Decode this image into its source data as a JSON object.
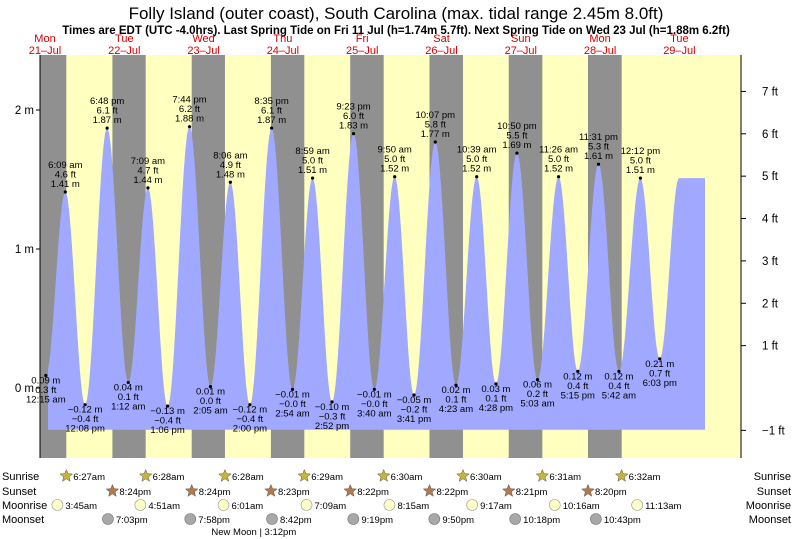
{
  "chart_data": {
    "type": "area",
    "title": "Folly Island (outer coast), South Carolina (max. tidal range 2.45m 8.0ft)",
    "subtitle": "Times are EDT (UTC -4.0hrs). Last Spring Tide on Fri 11 Jul (h=1.74m 5.7ft). Next Spring Tide on Wed 23 Jul (h=1.88m 6.2ft)",
    "days": [
      {
        "dow": "Mon",
        "date": "21–Jul"
      },
      {
        "dow": "Tue",
        "date": "22–Jul"
      },
      {
        "dow": "Wed",
        "date": "23–Jul"
      },
      {
        "dow": "Thu",
        "date": "24–Jul"
      },
      {
        "dow": "Fri",
        "date": "25–Jul"
      },
      {
        "dow": "Sat",
        "date": "26–Jul"
      },
      {
        "dow": "Sun",
        "date": "27–Jul"
      },
      {
        "dow": "Mon",
        "date": "28–Jul"
      },
      {
        "dow": "Tue",
        "date": "29–Jul"
      }
    ],
    "y_left": {
      "unit": "m",
      "ticks": [
        {
          "v": 0,
          "label": "0 m"
        },
        {
          "v": 1,
          "label": "1 m"
        },
        {
          "v": 2,
          "label": "2 m"
        }
      ]
    },
    "y_right": {
      "unit": "ft",
      "ticks": [
        {
          "v": -1,
          "label": "−1 ft"
        },
        {
          "v": 1,
          "label": "1 ft"
        },
        {
          "v": 2,
          "label": "2 ft"
        },
        {
          "v": 3,
          "label": "3 ft"
        },
        {
          "v": 4,
          "label": "4 ft"
        },
        {
          "v": 5,
          "label": "5 ft"
        },
        {
          "v": 6,
          "label": "6 ft"
        },
        {
          "v": 7,
          "label": "7 ft"
        }
      ]
    },
    "ylim_m": [
      -0.5,
      2.4
    ],
    "tides": [
      {
        "day": 0,
        "hour": 0.25,
        "m": 0.09,
        "time": "12:15 am",
        "ft": "0.3 ft",
        "mstr": "0.09 m",
        "type": "low"
      },
      {
        "day": 0,
        "hour": 6.15,
        "m": 1.41,
        "time": "6:09 am",
        "ft": "4.6 ft",
        "mstr": "1.41 m",
        "type": "high"
      },
      {
        "day": 0,
        "hour": 12.13,
        "m": -0.12,
        "time": "12:08 pm",
        "ft": "−0.4 ft",
        "mstr": "−0.12 m",
        "type": "low"
      },
      {
        "day": 0,
        "hour": 18.8,
        "m": 1.87,
        "time": "6:48 pm",
        "ft": "6.1 ft",
        "mstr": "1.87 m",
        "type": "high"
      },
      {
        "day": 1,
        "hour": 1.2,
        "m": 0.04,
        "time": "1:12 am",
        "ft": "0.1 ft",
        "mstr": "0.04 m",
        "type": "low"
      },
      {
        "day": 1,
        "hour": 7.15,
        "m": 1.44,
        "time": "7:09 am",
        "ft": "4.7 ft",
        "mstr": "1.44 m",
        "type": "high"
      },
      {
        "day": 1,
        "hour": 13.1,
        "m": -0.13,
        "time": "1:06 pm",
        "ft": "−0.4 ft",
        "mstr": "−0.13 m",
        "type": "low"
      },
      {
        "day": 1,
        "hour": 19.73,
        "m": 1.88,
        "time": "7:44 pm",
        "ft": "6.2 ft",
        "mstr": "1.88 m",
        "type": "high"
      },
      {
        "day": 2,
        "hour": 2.08,
        "m": 0.01,
        "time": "2:05 am",
        "ft": "0.0 ft",
        "mstr": "0.01 m",
        "type": "low"
      },
      {
        "day": 2,
        "hour": 8.1,
        "m": 1.48,
        "time": "8:06 am",
        "ft": "4.9 ft",
        "mstr": "1.48 m",
        "type": "high"
      },
      {
        "day": 2,
        "hour": 14.0,
        "m": -0.12,
        "time": "2:00 pm",
        "ft": "−0.4 ft",
        "mstr": "−0.12 m",
        "type": "low"
      },
      {
        "day": 2,
        "hour": 20.58,
        "m": 1.87,
        "time": "8:35 pm",
        "ft": "6.1 ft",
        "mstr": "1.87 m",
        "type": "high"
      },
      {
        "day": 3,
        "hour": 2.9,
        "m": -0.01,
        "time": "2:54 am",
        "ft": "−0.0 ft",
        "mstr": "−0.01 m",
        "type": "low"
      },
      {
        "day": 3,
        "hour": 8.98,
        "m": 1.51,
        "time": "8:59 am",
        "ft": "5.0 ft",
        "mstr": "1.51 m",
        "type": "high"
      },
      {
        "day": 3,
        "hour": 14.87,
        "m": -0.1,
        "time": "2:52 pm",
        "ft": "−0.3 ft",
        "mstr": "−0.10 m",
        "type": "low"
      },
      {
        "day": 3,
        "hour": 21.38,
        "m": 1.83,
        "time": "9:23 pm",
        "ft": "6.0 ft",
        "mstr": "1.83 m",
        "type": "high"
      },
      {
        "day": 4,
        "hour": 3.67,
        "m": -0.01,
        "time": "3:40 am",
        "ft": "−0.0 ft",
        "mstr": "−0.01 m",
        "type": "low"
      },
      {
        "day": 4,
        "hour": 9.83,
        "m": 1.52,
        "time": "9:50 am",
        "ft": "5.0 ft",
        "mstr": "1.52 m",
        "type": "high"
      },
      {
        "day": 4,
        "hour": 15.68,
        "m": -0.05,
        "time": "3:41 pm",
        "ft": "−0.2 ft",
        "mstr": "−0.05 m",
        "type": "low"
      },
      {
        "day": 4,
        "hour": 22.12,
        "m": 1.77,
        "time": "10:07 pm",
        "ft": "5.8 ft",
        "mstr": "1.77 m",
        "type": "high"
      },
      {
        "day": 5,
        "hour": 4.38,
        "m": 0.02,
        "time": "4:23 am",
        "ft": "0.1 ft",
        "mstr": "0.02 m",
        "type": "low"
      },
      {
        "day": 5,
        "hour": 10.65,
        "m": 1.52,
        "time": "10:39 am",
        "ft": "5.0 ft",
        "mstr": "1.52 m",
        "type": "high"
      },
      {
        "day": 5,
        "hour": 16.47,
        "m": 0.03,
        "time": "4:28 pm",
        "ft": "0.1 ft",
        "mstr": "0.03 m",
        "type": "low"
      },
      {
        "day": 5,
        "hour": 22.83,
        "m": 1.69,
        "time": "10:50 pm",
        "ft": "5.5 ft",
        "mstr": "1.69 m",
        "type": "high"
      },
      {
        "day": 6,
        "hour": 5.05,
        "m": 0.06,
        "time": "5:03 am",
        "ft": "0.2 ft",
        "mstr": "0.06 m",
        "type": "low"
      },
      {
        "day": 6,
        "hour": 11.43,
        "m": 1.52,
        "time": "11:26 am",
        "ft": "5.0 ft",
        "mstr": "1.52 m",
        "type": "high"
      },
      {
        "day": 6,
        "hour": 17.25,
        "m": 0.12,
        "time": "5:15 pm",
        "ft": "0.4 ft",
        "mstr": "0.12 m",
        "type": "low"
      },
      {
        "day": 6,
        "hour": 23.52,
        "m": 1.61,
        "time": "11:31 pm",
        "ft": "5.3 ft",
        "mstr": "1.61 m",
        "type": "high"
      },
      {
        "day": 7,
        "hour": 5.7,
        "m": 0.12,
        "time": "5:42 am",
        "ft": "0.4 ft",
        "mstr": "0.12 m",
        "type": "low"
      },
      {
        "day": 7,
        "hour": 12.2,
        "m": 1.51,
        "time": "12:12 pm",
        "ft": "5.0 ft",
        "mstr": "1.51 m",
        "type": "high"
      },
      {
        "day": 7,
        "hour": 18.05,
        "m": 0.21,
        "time": "6:03 pm",
        "ft": "0.7 ft",
        "mstr": "0.21 m",
        "type": "low"
      }
    ],
    "sun": [
      {
        "day": 0,
        "rise": 6.45,
        "rise_label": "6:27am",
        "set": 20.4,
        "set_label": "8:24pm"
      },
      {
        "day": 1,
        "rise": 6.47,
        "rise_label": "6:28am",
        "set": 20.4,
        "set_label": "8:24pm"
      },
      {
        "day": 2,
        "rise": 6.47,
        "rise_label": "6:28am",
        "set": 20.38,
        "set_label": "8:23pm"
      },
      {
        "day": 3,
        "rise": 6.48,
        "rise_label": "6:29am",
        "set": 20.37,
        "set_label": "8:22pm"
      },
      {
        "day": 4,
        "rise": 6.5,
        "rise_label": "6:30am",
        "set": 20.37,
        "set_label": "8:22pm"
      },
      {
        "day": 5,
        "rise": 6.5,
        "rise_label": "6:30am",
        "set": 20.35,
        "set_label": "8:21pm"
      },
      {
        "day": 6,
        "rise": 6.52,
        "rise_label": "6:31am",
        "set": 20.33,
        "set_label": "8:20pm"
      },
      {
        "day": 7,
        "rise": 6.53,
        "rise_label": "6:32am"
      }
    ],
    "moonrise": [
      {
        "day": 0,
        "hour": 3.75,
        "label": "3:45am"
      },
      {
        "day": 1,
        "hour": 4.85,
        "label": "4:51am"
      },
      {
        "day": 2,
        "hour": 6.02,
        "label": "6:01am"
      },
      {
        "day": 3,
        "hour": 7.15,
        "label": "7:09am"
      },
      {
        "day": 4,
        "hour": 8.25,
        "label": "8:15am"
      },
      {
        "day": 5,
        "hour": 9.28,
        "label": "9:17am"
      },
      {
        "day": 6,
        "hour": 10.27,
        "label": "10:16am"
      },
      {
        "day": 7,
        "hour": 11.22,
        "label": "11:13am"
      }
    ],
    "moonset": [
      {
        "day": 0,
        "hour": 19.05,
        "label": "7:03pm"
      },
      {
        "day": 1,
        "hour": 19.97,
        "label": "7:58pm"
      },
      {
        "day": 2,
        "hour": 20.7,
        "label": "8:42pm"
      },
      {
        "day": 3,
        "hour": 21.32,
        "label": "9:19pm"
      },
      {
        "day": 4,
        "hour": 21.83,
        "label": "9:50pm"
      },
      {
        "day": 5,
        "hour": 22.3,
        "label": "10:18pm"
      },
      {
        "day": 6,
        "hour": 22.72,
        "label": "10:43pm"
      }
    ],
    "moon_phase": {
      "day": 2,
      "hour": 15.2,
      "label": "New Moon | 3:12pm"
    },
    "row_labels": {
      "sunrise": "Sunrise",
      "sunset": "Sunset",
      "moonrise": "Moonrise",
      "moonset": "Moonset"
    },
    "colors": {
      "night": "#909090",
      "day": "#ffffc0",
      "water": "#a0a8ff",
      "date": "#d40000",
      "sunrise_star": "#c8b43c",
      "sunset_star": "#b4784a",
      "moonrise": "#ffffc8",
      "moonset": "#a8a8a8"
    }
  }
}
